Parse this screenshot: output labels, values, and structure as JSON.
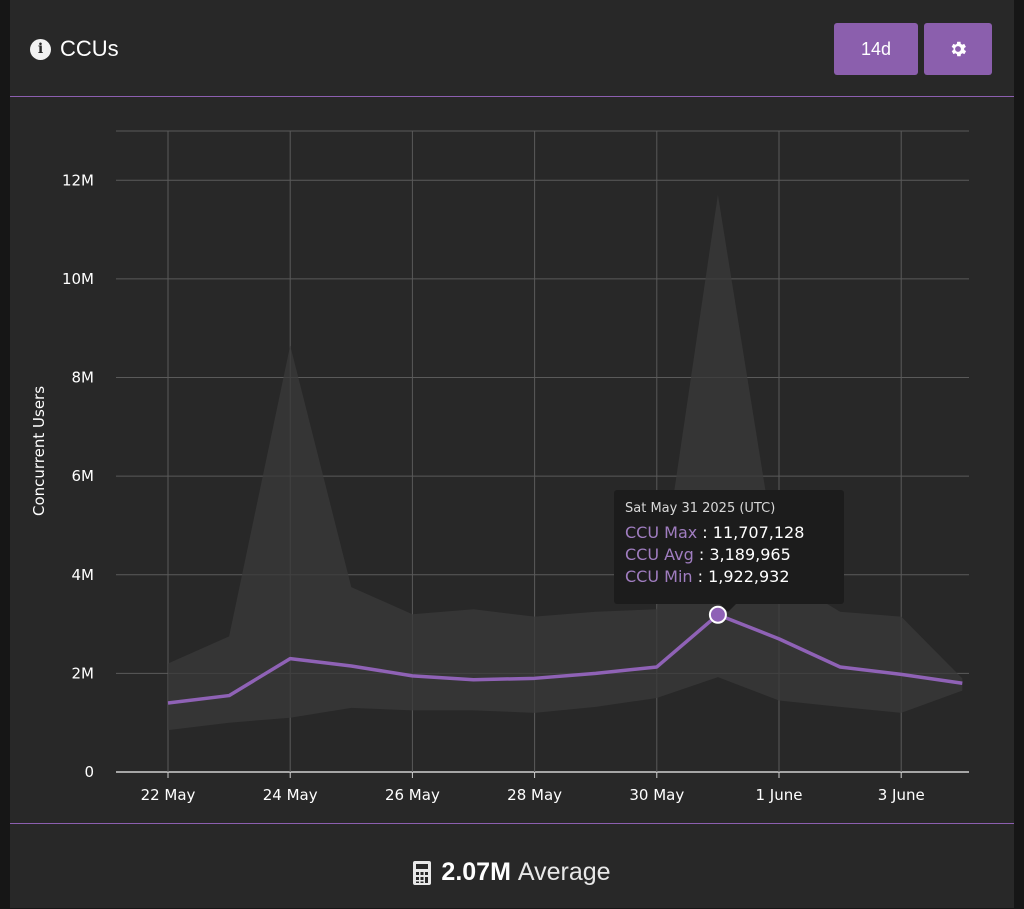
{
  "header": {
    "title": "CCUs",
    "range_label": "14d"
  },
  "colors": {
    "accent": "#8b5fad",
    "line": "#8f62b6",
    "band": "#3a3a3a",
    "background": "#282828"
  },
  "icons": {
    "info": "info-icon",
    "settings": "gear-icon",
    "calculator": "calculator-icon"
  },
  "chart_data": {
    "type": "line",
    "ylabel": "Concurrent Users",
    "ylim": [
      0,
      13000000
    ],
    "yticks": [
      0,
      2000000,
      4000000,
      6000000,
      8000000,
      10000000,
      12000000
    ],
    "ytick_labels": [
      "0",
      "2M",
      "4M",
      "6M",
      "8M",
      "10M",
      "12M"
    ],
    "x": [
      "2025-05-22",
      "2025-05-23",
      "2025-05-24",
      "2025-05-25",
      "2025-05-26",
      "2025-05-27",
      "2025-05-28",
      "2025-05-29",
      "2025-05-30",
      "2025-05-31",
      "2025-06-01",
      "2025-06-02",
      "2025-06-03",
      "2025-06-04"
    ],
    "xtick_labels": [
      {
        "date": "2025-05-22",
        "label": "22 May"
      },
      {
        "date": "2025-05-24",
        "label": "24 May"
      },
      {
        "date": "2025-05-26",
        "label": "26 May"
      },
      {
        "date": "2025-05-28",
        "label": "28 May"
      },
      {
        "date": "2025-05-30",
        "label": "30 May"
      },
      {
        "date": "2025-06-01",
        "label": "1 June"
      },
      {
        "date": "2025-06-03",
        "label": "3 June"
      }
    ],
    "series": [
      {
        "name": "CCU Max",
        "values": [
          2200000,
          2750000,
          8650000,
          3750000,
          3200000,
          3300000,
          3150000,
          3250000,
          3300000,
          11707128,
          4000000,
          3250000,
          3150000,
          1900000
        ]
      },
      {
        "name": "CCU Avg",
        "values": [
          1400000,
          1550000,
          2300000,
          2150000,
          1950000,
          1870000,
          1900000,
          2000000,
          2130000,
          3189965,
          2700000,
          2130000,
          1980000,
          1800000
        ]
      },
      {
        "name": "CCU Min",
        "values": [
          850000,
          1000000,
          1100000,
          1300000,
          1250000,
          1250000,
          1200000,
          1320000,
          1500000,
          1922932,
          1450000,
          1320000,
          1200000,
          1650000
        ]
      }
    ],
    "highlight_index": 9
  },
  "tooltip": {
    "date": "Sat May 31 2025 (UTC)",
    "rows": [
      {
        "label": "CCU Max",
        "value": "11,707,128"
      },
      {
        "label": "CCU Avg",
        "value": "3,189,965"
      },
      {
        "label": "CCU Min",
        "value": "1,922,932"
      }
    ]
  },
  "footer": {
    "average_value": "2.07M",
    "average_label": "Average"
  }
}
